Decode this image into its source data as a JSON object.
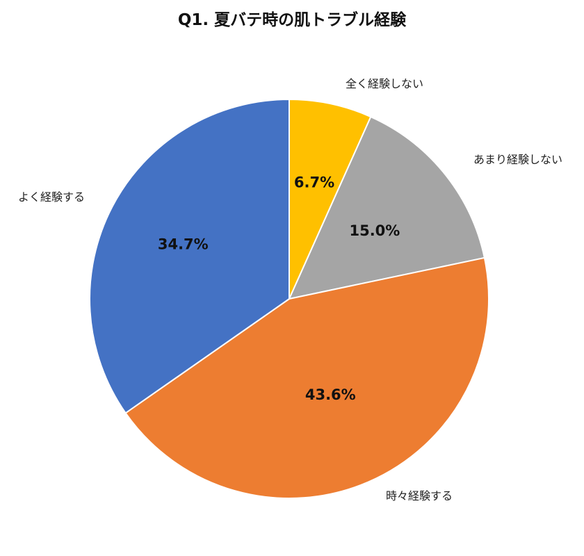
{
  "chart_data": {
    "type": "pie",
    "title": "Q1. 夏バテ時の肌トラブル経験",
    "start": "top",
    "direction": "clockwise",
    "slices": [
      {
        "label": "全く経験しない",
        "value": 6.7,
        "display": "6.7%",
        "color": "#FFC000"
      },
      {
        "label": "あまり経験しない",
        "value": 15.0,
        "display": "15.0%",
        "color": "#A5A5A5"
      },
      {
        "label": "時々経験する",
        "value": 43.6,
        "display": "43.6%",
        "color": "#ED7D31"
      },
      {
        "label": "よく経験する",
        "value": 34.7,
        "display": "34.7%",
        "color": "#4472C4"
      }
    ]
  }
}
